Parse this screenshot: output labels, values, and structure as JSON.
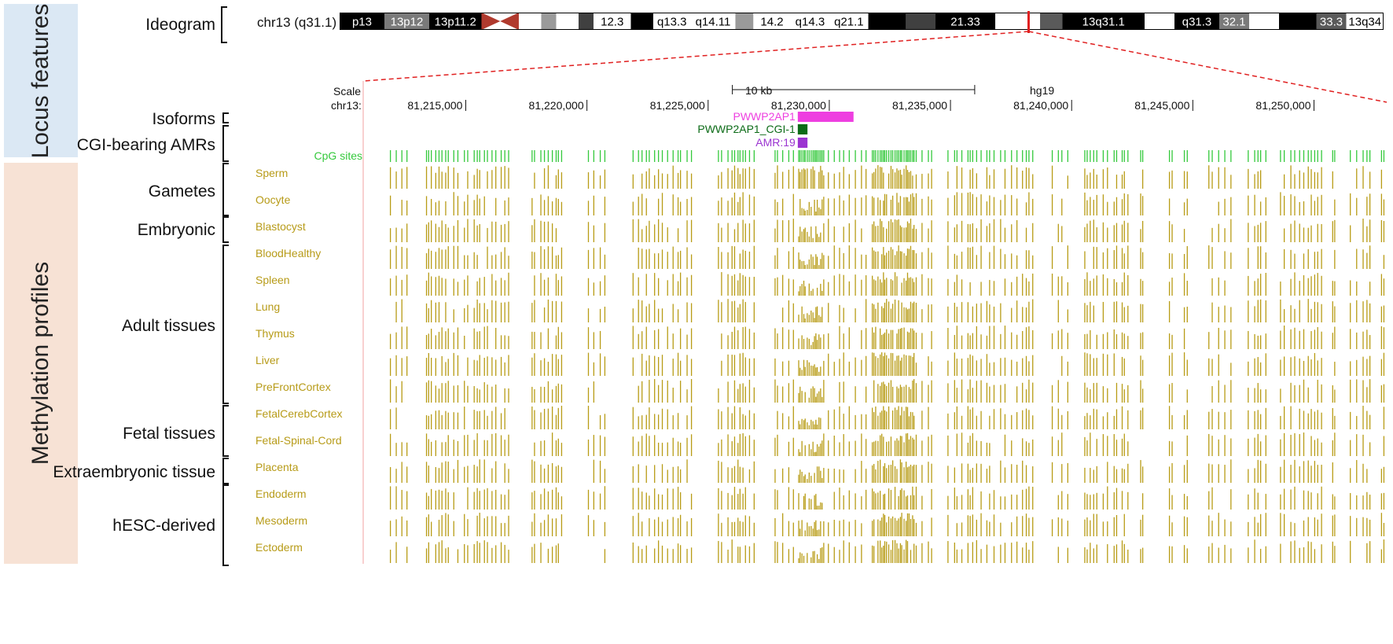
{
  "side_labels": {
    "locus": "Locus features",
    "methylation": "Methylation profiles"
  },
  "colors": {
    "locus_band": "#dbe8f4",
    "methylation_band": "#f7e2d5",
    "track": "#b89c16",
    "cpg": "#35c93c",
    "isoform": "#ee3fe0",
    "cgi": "#0c6b17",
    "amr": "#9b34d1",
    "highlight": "#e02020",
    "centromere": "#b03a2e"
  },
  "groups": {
    "ideogram": "Ideogram",
    "isoforms": "Isoforms",
    "cgi_amrs": "CGI-bearing AMRs",
    "gametes": "Gametes",
    "embryonic": "Embryonic",
    "adult": "Adult tissues",
    "fetal": "Fetal tissues",
    "extraembryonic": "Extraembryonic tissue",
    "hesc": "hESC-derived"
  },
  "ideogram": {
    "position_label": "chr13 (q31.1)",
    "bands": [
      {
        "label": "p13",
        "color": "#000000",
        "text": "#ffffff",
        "w": 3
      },
      {
        "label": "13p12",
        "color": "#7a7a7a",
        "text": "#ffffff",
        "w": 3
      },
      {
        "label": "13p11.2",
        "color": "#000000",
        "text": "#ffffff",
        "w": 3.5
      },
      {
        "label": "",
        "color": "centromere",
        "text": "#ffffff",
        "w": 2.5
      },
      {
        "label": "",
        "color": "#ffffff",
        "text": "#000000",
        "w": 1.5
      },
      {
        "label": "",
        "color": "#9a9a9a",
        "text": "#000000",
        "w": 1
      },
      {
        "label": "",
        "color": "#ffffff",
        "text": "#000000",
        "w": 1.5
      },
      {
        "label": "",
        "color": "#404040",
        "text": "#ffffff",
        "w": 1
      },
      {
        "label": "12.3",
        "color": "#ffffff",
        "text": "#000000",
        "w": 2.5
      },
      {
        "label": "",
        "color": "#000000",
        "text": "#ffffff",
        "w": 1.5
      },
      {
        "label": "q13.3",
        "color": "#ffffff",
        "text": "#000000",
        "w": 2.5
      },
      {
        "label": "q14.11",
        "color": "#ffffff",
        "text": "#000000",
        "w": 3
      },
      {
        "label": "",
        "color": "#9a9a9a",
        "text": "#000000",
        "w": 1.2
      },
      {
        "label": "14.2",
        "color": "#ffffff",
        "text": "#000000",
        "w": 2.5
      },
      {
        "label": "q14.3",
        "color": "#ffffff",
        "text": "#000000",
        "w": 2.6
      },
      {
        "label": "q21.1",
        "color": "#ffffff",
        "text": "#000000",
        "w": 2.6
      },
      {
        "label": "",
        "color": "#000000",
        "text": "#ffffff",
        "w": 2.5
      },
      {
        "label": "",
        "color": "#404040",
        "text": "#ffffff",
        "w": 2
      },
      {
        "label": "21.33",
        "color": "#000000",
        "text": "#ffffff",
        "w": 4
      },
      {
        "label": "",
        "color": "#ffffff",
        "text": "#000000",
        "w": 3
      },
      {
        "label": "",
        "color": "#5a5a5a",
        "text": "#ffffff",
        "w": 1.5
      },
      {
        "label": "13q31.1",
        "color": "#000000",
        "text": "#ffffff",
        "w": 5.5
      },
      {
        "label": "",
        "color": "#ffffff",
        "text": "#000000",
        "w": 2
      },
      {
        "label": "q31.3",
        "color": "#000000",
        "text": "#ffffff",
        "w": 3
      },
      {
        "label": "32.1",
        "color": "#7a7a7a",
        "text": "#ffffff",
        "w": 2
      },
      {
        "label": "",
        "color": "#ffffff",
        "text": "#000000",
        "w": 2
      },
      {
        "label": "",
        "color": "#000000",
        "text": "#ffffff",
        "w": 2.5
      },
      {
        "label": "33.3",
        "color": "#5a5a5a",
        "text": "#ffffff",
        "w": 2
      },
      {
        "label": "13q34",
        "color": "#ffffff",
        "text": "#000000",
        "w": 2.5
      }
    ],
    "highlight_fraction": 0.66
  },
  "browser": {
    "scale_label": "Scale",
    "chrom_label": "chr13:",
    "scale_bar_label": "10 kb",
    "assembly": "hg19",
    "range": [
      81210800,
      81253000
    ],
    "ticks": [
      {
        "pos": 81215000,
        "label": "81,215,000"
      },
      {
        "pos": 81220000,
        "label": "81,220,000"
      },
      {
        "pos": 81225000,
        "label": "81,225,000"
      },
      {
        "pos": 81230000,
        "label": "81,230,000"
      },
      {
        "pos": 81235000,
        "label": "81,235,000"
      },
      {
        "pos": 81240000,
        "label": "81,240,000"
      },
      {
        "pos": 81245000,
        "label": "81,245,000"
      },
      {
        "pos": 81250000,
        "label": "81,250,000"
      }
    ],
    "scale_bar": [
      81226000,
      81236000
    ],
    "features": [
      {
        "label": "PWWP2AP1",
        "start": 81228700,
        "end": 81231000,
        "color": "isoform"
      },
      {
        "label": "PWWP2AP1_CGI-1",
        "start": 81228700,
        "end": 81229100,
        "color": "cgi"
      },
      {
        "label": "AMR:19",
        "start": 81228700,
        "end": 81229100,
        "color": "amr"
      }
    ],
    "cpg_label": "CpG sites",
    "tracks": [
      "Sperm",
      "Oocyte",
      "Blastocyst",
      "BloodHealthy",
      "Spleen",
      "Lung",
      "Thymus",
      "Liver",
      "PreFrontCortex",
      "FetalCerebCortex",
      "Fetal-Spinal-Cord",
      "Placenta",
      "Endoderm",
      "Mesoderm",
      "Ectoderm"
    ]
  }
}
